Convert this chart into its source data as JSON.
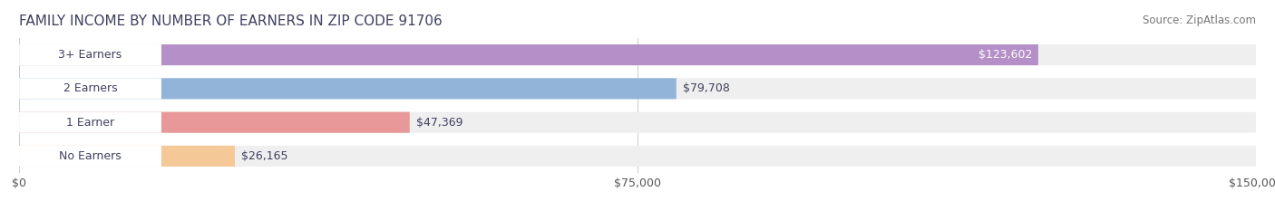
{
  "title": "FAMILY INCOME BY NUMBER OF EARNERS IN ZIP CODE 91706",
  "source": "Source: ZipAtlas.com",
  "categories": [
    "No Earners",
    "1 Earner",
    "2 Earners",
    "3+ Earners"
  ],
  "values": [
    26165,
    47369,
    79708,
    123602
  ],
  "bar_colors": [
    "#f5c897",
    "#e89898",
    "#92b4d8",
    "#b48fc8"
  ],
  "bar_bg_color": "#efefef",
  "label_colors": [
    "#555555",
    "#555555",
    "#555555",
    "#ffffff"
  ],
  "value_labels": [
    "$26,165",
    "$47,369",
    "$79,708",
    "$123,602"
  ],
  "xlim": [
    0,
    150000
  ],
  "xticks": [
    0,
    75000,
    150000
  ],
  "xtick_labels": [
    "$0",
    "$75,000",
    "$150,000"
  ],
  "title_color": "#404060",
  "title_fontsize": 11,
  "source_fontsize": 8.5,
  "bar_label_fontsize": 9,
  "value_label_fontsize": 9,
  "tick_label_fontsize": 9,
  "background_color": "#ffffff"
}
